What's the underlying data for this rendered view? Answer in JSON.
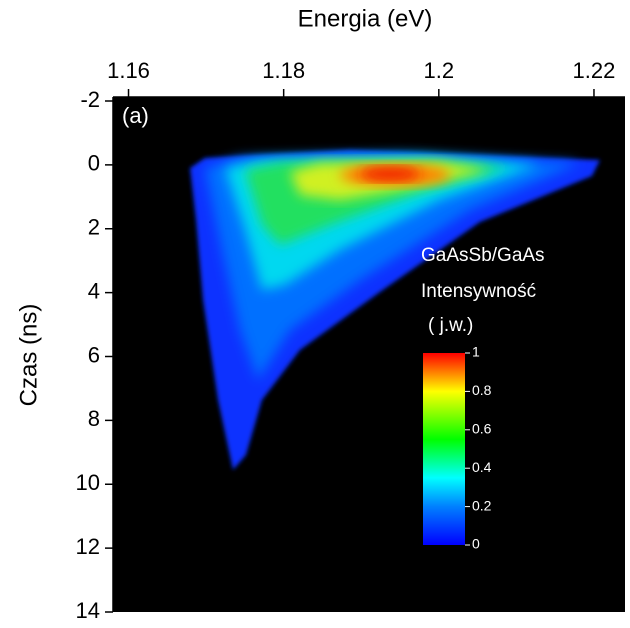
{
  "chart_data": {
    "type": "heatmap",
    "x_label": "Energia (eV)",
    "y_label": "Czas (ns)",
    "annotation": "(a)",
    "xlim": [
      1.158,
      1.224
    ],
    "xticks": [
      1.16,
      1.18,
      1.2,
      1.22
    ],
    "ylim": [
      -2,
      14
    ],
    "yticks": [
      -2,
      0,
      2,
      4,
      6,
      8,
      10,
      12,
      14
    ],
    "y_inverted": true,
    "colorbar": {
      "title_lines": [
        "GaAsSb/GaAs",
        "Intensywność",
        "( j.w.)"
      ],
      "clim": [
        0,
        1
      ],
      "ticks": [
        0,
        0.2,
        0.4,
        0.6,
        0.8,
        1
      ]
    }
  }
}
